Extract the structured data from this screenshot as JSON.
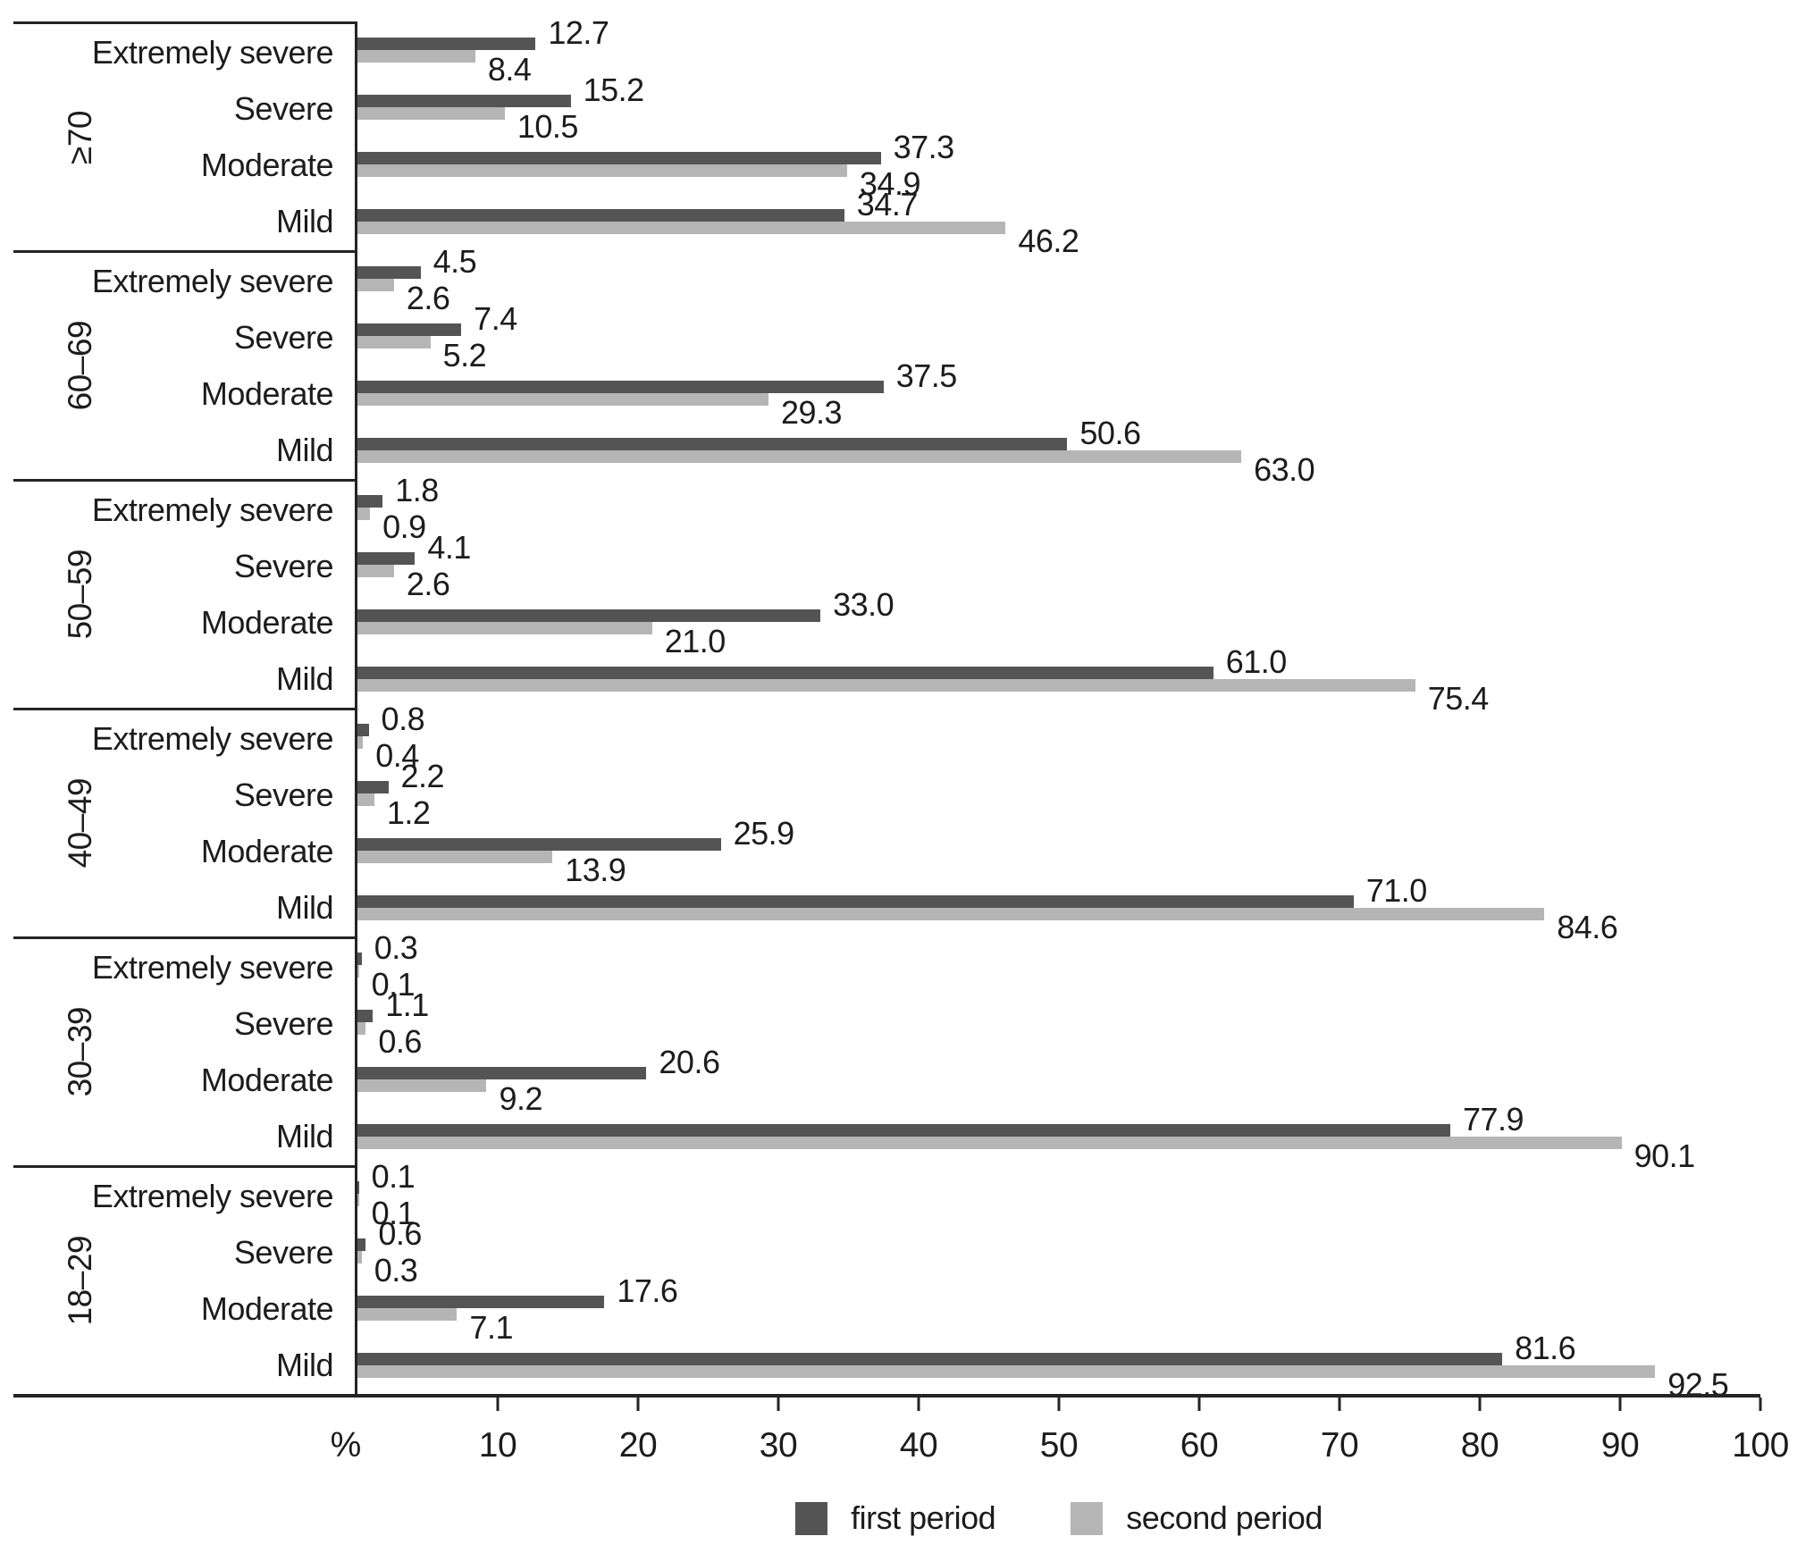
{
  "chart_data": {
    "type": "bar",
    "orientation": "horizontal",
    "unit_label": "%",
    "xlim": [
      0,
      100
    ],
    "x_ticks": [
      10,
      20,
      30,
      40,
      50,
      60,
      70,
      80,
      90,
      100
    ],
    "grid": false,
    "legend_position": "bottom-center",
    "value_labels_shown": true,
    "colors": {
      "first_period": "#545454",
      "second_period": "#b5b5b5"
    },
    "series": [
      {
        "name": "first period",
        "color": "#545454"
      },
      {
        "name": "second period",
        "color": "#b5b5b5"
      }
    ],
    "groups": [
      {
        "age_group": "≥70",
        "rows": [
          {
            "category": "Extremely severe",
            "first_period": 12.7,
            "second_period": 8.4
          },
          {
            "category": "Severe",
            "first_period": 15.2,
            "second_period": 10.5
          },
          {
            "category": "Moderate",
            "first_period": 37.3,
            "second_period": 34.9
          },
          {
            "category": "Mild",
            "first_period": 34.7,
            "second_period": 46.2
          }
        ]
      },
      {
        "age_group": "60–69",
        "rows": [
          {
            "category": "Extremely severe",
            "first_period": 4.5,
            "second_period": 2.6
          },
          {
            "category": "Severe",
            "first_period": 7.4,
            "second_period": 5.2
          },
          {
            "category": "Moderate",
            "first_period": 37.5,
            "second_period": 29.3
          },
          {
            "category": "Mild",
            "first_period": 50.6,
            "second_period": 63.0
          }
        ]
      },
      {
        "age_group": "50–59",
        "rows": [
          {
            "category": "Extremely severe",
            "first_period": 1.8,
            "second_period": 0.9
          },
          {
            "category": "Severe",
            "first_period": 4.1,
            "second_period": 2.6
          },
          {
            "category": "Moderate",
            "first_period": 33.0,
            "second_period": 21.0
          },
          {
            "category": "Mild",
            "first_period": 61.0,
            "second_period": 75.4
          }
        ]
      },
      {
        "age_group": "40–49",
        "rows": [
          {
            "category": "Extremely severe",
            "first_period": 0.8,
            "second_period": 0.4
          },
          {
            "category": "Severe",
            "first_period": 2.2,
            "second_period": 1.2
          },
          {
            "category": "Moderate",
            "first_period": 25.9,
            "second_period": 13.9
          },
          {
            "category": "Mild",
            "first_period": 71.0,
            "second_period": 84.6
          }
        ]
      },
      {
        "age_group": "30–39",
        "rows": [
          {
            "category": "Extremely severe",
            "first_period": 0.3,
            "second_period": 0.1
          },
          {
            "category": "Severe",
            "first_period": 1.1,
            "second_period": 0.6
          },
          {
            "category": "Moderate",
            "first_period": 20.6,
            "second_period": 9.2
          },
          {
            "category": "Mild",
            "first_period": 77.9,
            "second_period": 90.1
          }
        ]
      },
      {
        "age_group": "18–29",
        "rows": [
          {
            "category": "Extremely severe",
            "first_period": 0.1,
            "second_period": 0.1
          },
          {
            "category": "Severe",
            "first_period": 0.6,
            "second_period": 0.3
          },
          {
            "category": "Moderate",
            "first_period": 17.6,
            "second_period": 7.1
          },
          {
            "category": "Mild",
            "first_period": 81.6,
            "second_period": 92.5
          }
        ]
      }
    ]
  },
  "legend": {
    "first_label": "first period",
    "second_label": "second period"
  }
}
